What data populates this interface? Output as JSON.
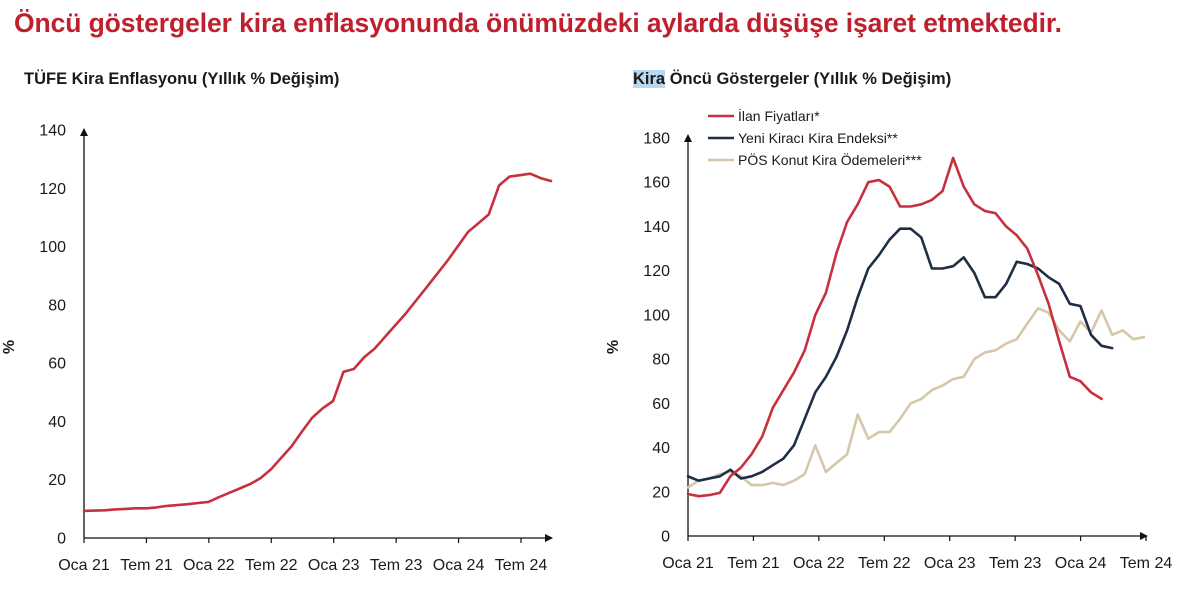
{
  "headline": "Öncü göstergeler kira enflasyonunda önümüzdeki aylarda düşüşe işaret etmektedir.",
  "colors": {
    "red": "#c7303f",
    "navy": "#1e2f45",
    "beige": "#d6c7a8"
  },
  "chart_data": [
    {
      "type": "line",
      "title": "TÜFE Kira Enflasyonu (Yıllık % Değişim)",
      "ylabel": "%",
      "ylim": [
        0,
        140
      ],
      "yticks": [
        0,
        20,
        40,
        60,
        80,
        100,
        120,
        140
      ],
      "xticks": [
        "Oca 21",
        "Tem 21",
        "Oca 22",
        "Tem 22",
        "Oca 23",
        "Tem 23",
        "Oca 24",
        "Tem 24"
      ],
      "series": [
        {
          "color": "#c7303f",
          "values": [
            9.3,
            9.4,
            9.5,
            9.8,
            10,
            10.2,
            10.2,
            10.5,
            11,
            11.3,
            11.6,
            12,
            12.4,
            14,
            15.5,
            17,
            18.5,
            20.5,
            23.5,
            27.5,
            31.5,
            36.5,
            41.3,
            44.5,
            47,
            57,
            58,
            62,
            65,
            69,
            73,
            77,
            81.5,
            86,
            90.5,
            95,
            100,
            105,
            108,
            111,
            121,
            124,
            124.5,
            125,
            123.5,
            122.5
          ]
        }
      ]
    },
    {
      "type": "line",
      "title_highlight": "Kira",
      "title": "Öncü Göstergeler (Yıllık % Değişim)",
      "ylabel": "%",
      "ylim": [
        0,
        180
      ],
      "yticks": [
        0,
        20,
        40,
        60,
        80,
        100,
        120,
        140,
        160,
        180
      ],
      "xticks": [
        "Oca 21",
        "Tem 21",
        "Oca 22",
        "Tem 22",
        "Oca 23",
        "Tem 23",
        "Oca 24",
        "Tem 24"
      ],
      "legend": "top-left",
      "series": [
        {
          "name": "İlan Fiyatları*",
          "color": "#c7303f",
          "values": [
            19,
            18,
            18.5,
            19.5,
            27,
            31,
            37,
            45,
            58,
            66,
            74,
            84,
            100,
            110,
            128,
            142,
            150,
            160,
            161,
            158,
            149,
            149,
            150,
            152,
            156,
            171,
            158,
            150,
            147,
            146,
            140,
            136,
            130,
            118,
            105,
            88,
            72,
            70,
            65,
            62
          ]
        },
        {
          "name": "Yeni Kiracı Kira Endeksi**",
          "color": "#1e2f45",
          "values": [
            27,
            25,
            26,
            27,
            30,
            26,
            27,
            29,
            32,
            35,
            41,
            53,
            65,
            72,
            81,
            93,
            108,
            121,
            127,
            134,
            139,
            139,
            135,
            121,
            121,
            122,
            126,
            119,
            108,
            108,
            114,
            124,
            123,
            121,
            117,
            114,
            105,
            104,
            91,
            86,
            85
          ]
        },
        {
          "name": "PÖS Konut Kira Ödemeleri***",
          "color": "#d6c7a8",
          "values": [
            22,
            25,
            26,
            28,
            29,
            27,
            23,
            23,
            24,
            23,
            25,
            28,
            41,
            29,
            33,
            37,
            55,
            44,
            47,
            47,
            53,
            60,
            62,
            66,
            68,
            71,
            72,
            80,
            83,
            84,
            87,
            89,
            96,
            103,
            101,
            93,
            88,
            97,
            92,
            102,
            91,
            93,
            89,
            90
          ]
        }
      ]
    }
  ]
}
